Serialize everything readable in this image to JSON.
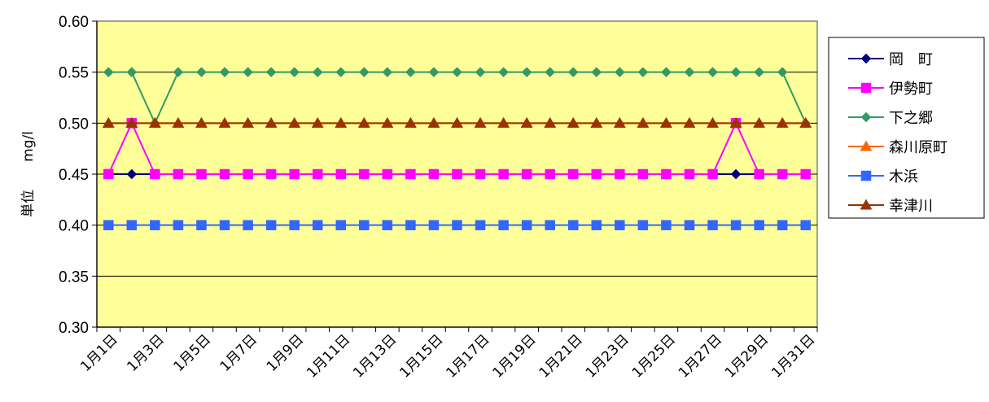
{
  "chart_data": {
    "type": "line",
    "ylabel": "単位　　mg/l",
    "ylim": [
      0.3,
      0.6
    ],
    "y_ticks": [
      "0.30",
      "0.35",
      "0.40",
      "0.45",
      "0.50",
      "0.55",
      "0.60"
    ],
    "grid": true,
    "legend_position": "right",
    "plot_background": "#FFFF99",
    "categories": [
      "1月1日",
      "1月2日",
      "1月3日",
      "1月4日",
      "1月5日",
      "1月6日",
      "1月7日",
      "1月8日",
      "1月9日",
      "1月10日",
      "1月11日",
      "1月12日",
      "1月13日",
      "1月14日",
      "1月15日",
      "1月16日",
      "1月17日",
      "1月18日",
      "1月19日",
      "1月20日",
      "1月21日",
      "1月22日",
      "1月23日",
      "1月24日",
      "1月25日",
      "1月26日",
      "1月27日",
      "1月28日",
      "1月29日",
      "1月30日",
      "1月31日"
    ],
    "x_tick_labels": [
      "1月1日",
      "1月3日",
      "1月5日",
      "1月7日",
      "1月9日",
      "1月11日",
      "1月13日",
      "1月15日",
      "1月17日",
      "1月19日",
      "1月21日",
      "1月23日",
      "1月25日",
      "1月27日",
      "1月29日",
      "1月31日"
    ],
    "series": [
      {
        "name": "岡　町",
        "color": "#000080",
        "marker": "diamond",
        "values": [
          0.45,
          0.45,
          0.45,
          0.45,
          0.45,
          0.45,
          0.45,
          0.45,
          0.45,
          0.45,
          0.45,
          0.45,
          0.45,
          0.45,
          0.45,
          0.45,
          0.45,
          0.45,
          0.45,
          0.45,
          0.45,
          0.45,
          0.45,
          0.45,
          0.45,
          0.45,
          0.45,
          0.45,
          0.45,
          0.45,
          0.45
        ]
      },
      {
        "name": "伊勢町",
        "color": "#FF00FF",
        "marker": "square",
        "values": [
          0.45,
          0.5,
          0.45,
          0.45,
          0.45,
          0.45,
          0.45,
          0.45,
          0.45,
          0.45,
          0.45,
          0.45,
          0.45,
          0.45,
          0.45,
          0.45,
          0.45,
          0.45,
          0.45,
          0.45,
          0.45,
          0.45,
          0.45,
          0.45,
          0.45,
          0.45,
          0.45,
          0.5,
          0.45,
          0.45,
          0.45
        ]
      },
      {
        "name": "下之郷",
        "color": "#339966",
        "marker": "diamond",
        "values": [
          0.55,
          0.55,
          0.5,
          0.55,
          0.55,
          0.55,
          0.55,
          0.55,
          0.55,
          0.55,
          0.55,
          0.55,
          0.55,
          0.55,
          0.55,
          0.55,
          0.55,
          0.55,
          0.55,
          0.55,
          0.55,
          0.55,
          0.55,
          0.55,
          0.55,
          0.55,
          0.55,
          0.55,
          0.55,
          0.55,
          0.5
        ]
      },
      {
        "name": "森川原町",
        "color": "#FF6600",
        "marker": "triangle",
        "values": [
          0.5,
          0.5,
          0.5,
          0.5,
          0.5,
          0.5,
          0.5,
          0.5,
          0.5,
          0.5,
          0.5,
          0.5,
          0.5,
          0.5,
          0.5,
          0.5,
          0.5,
          0.5,
          0.5,
          0.5,
          0.5,
          0.5,
          0.5,
          0.5,
          0.5,
          0.5,
          0.5,
          0.5,
          0.5,
          0.5,
          0.5
        ]
      },
      {
        "name": "木浜",
        "color": "#3366FF",
        "marker": "square",
        "values": [
          0.4,
          0.4,
          0.4,
          0.4,
          0.4,
          0.4,
          0.4,
          0.4,
          0.4,
          0.4,
          0.4,
          0.4,
          0.4,
          0.4,
          0.4,
          0.4,
          0.4,
          0.4,
          0.4,
          0.4,
          0.4,
          0.4,
          0.4,
          0.4,
          0.4,
          0.4,
          0.4,
          0.4,
          0.4,
          0.4,
          0.4
        ]
      },
      {
        "name": "幸津川",
        "color": "#993300",
        "marker": "triangle",
        "values": [
          0.5,
          0.5,
          0.5,
          0.5,
          0.5,
          0.5,
          0.5,
          0.5,
          0.5,
          0.5,
          0.5,
          0.5,
          0.5,
          0.5,
          0.5,
          0.5,
          0.5,
          0.5,
          0.5,
          0.5,
          0.5,
          0.5,
          0.5,
          0.5,
          0.5,
          0.5,
          0.5,
          0.5,
          0.5,
          0.5,
          0.5
        ]
      }
    ]
  }
}
